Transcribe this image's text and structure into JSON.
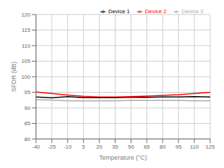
{
  "chart_data": {
    "type": "line",
    "xlabel": "Temperature (°C)",
    "ylabel": "SFDR (dB)",
    "x": [
      -40,
      -25,
      -10,
      5,
      20,
      35,
      50,
      65,
      80,
      95,
      110,
      125
    ],
    "series": [
      {
        "name": "Device 1",
        "color": "#000000",
        "values": [
          93.5,
          93.2,
          93.6,
          93.3,
          93.3,
          93.3,
          93.4,
          93.4,
          93.5,
          93.5,
          93.6,
          93.5
        ]
      },
      {
        "name": "Device 2",
        "color": "#ff0000",
        "values": [
          95.1,
          94.6,
          94.1,
          93.7,
          93.5,
          93.5,
          93.6,
          93.8,
          94.0,
          94.2,
          94.6,
          95.0
        ]
      },
      {
        "name": "Device 3",
        "color": "#aaaaaa",
        "values": [
          92.6,
          92.5,
          92.3,
          92.2,
          92.3,
          92.3,
          92.4,
          92.4,
          92.4,
          92.4,
          92.3,
          92.3
        ]
      }
    ],
    "xlim": [
      -40,
      125
    ],
    "ylim": [
      80,
      120
    ],
    "xticks": [
      -40,
      -25,
      -10,
      5,
      20,
      35,
      50,
      65,
      80,
      95,
      110,
      125
    ],
    "yticks": [
      80,
      85,
      90,
      95,
      100,
      105,
      110,
      115,
      120
    ],
    "grid": true,
    "legend": "upper right"
  }
}
